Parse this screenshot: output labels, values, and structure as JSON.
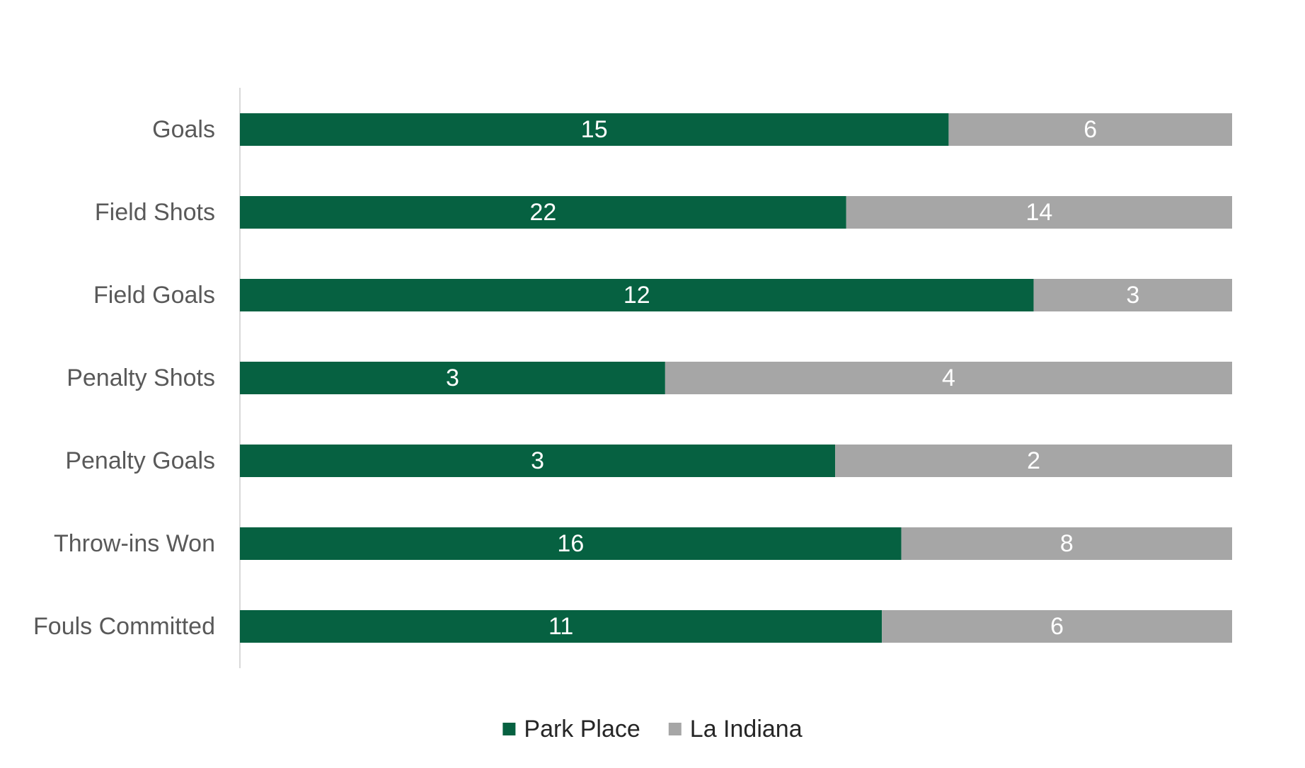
{
  "chart_data": {
    "type": "bar",
    "orientation": "horizontal",
    "stacked": "100%",
    "categories": [
      "Goals",
      "Field Shots",
      "Field Goals",
      "Penalty Shots",
      "Penalty Goals",
      "Throw-ins Won",
      "Fouls Committed"
    ],
    "series": [
      {
        "name": "Park Place",
        "values": [
          15,
          22,
          12,
          3,
          3,
          16,
          11
        ],
        "color": "#066141"
      },
      {
        "name": "La Indiana",
        "values": [
          6,
          14,
          3,
          4,
          2,
          8,
          6
        ],
        "color": "#a6a6a6"
      }
    ],
    "title": "",
    "xlabel": "",
    "ylabel": "",
    "grid": false,
    "legend": "bottom"
  }
}
